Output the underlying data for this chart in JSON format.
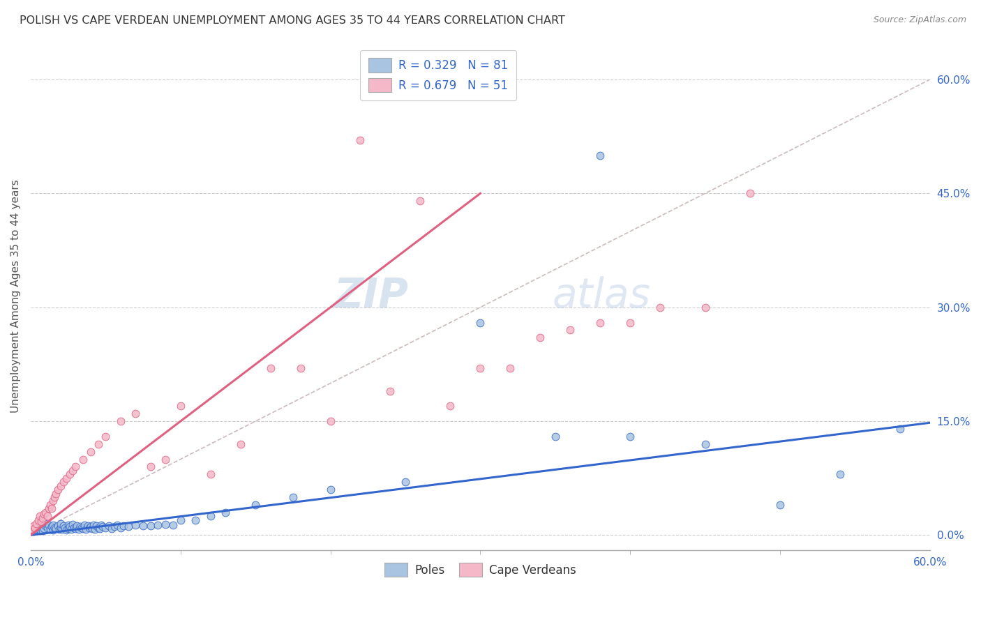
{
  "title": "POLISH VS CAPE VERDEAN UNEMPLOYMENT AMONG AGES 35 TO 44 YEARS CORRELATION CHART",
  "source": "Source: ZipAtlas.com",
  "ylabel": "Unemployment Among Ages 35 to 44 years",
  "xlim": [
    0.0,
    0.6
  ],
  "ylim": [
    -0.02,
    0.65
  ],
  "color_poles": "#a8c4e0",
  "color_cv": "#f4b8c8",
  "line_color_poles": "#3366cc",
  "line_color_cv": "#e06080",
  "watermark_zip": "ZIP",
  "watermark_atlas": "atlas",
  "poles_x": [
    0.002,
    0.003,
    0.004,
    0.005,
    0.006,
    0.007,
    0.008,
    0.009,
    0.01,
    0.01,
    0.011,
    0.012,
    0.013,
    0.014,
    0.015,
    0.015,
    0.016,
    0.017,
    0.018,
    0.019,
    0.02,
    0.02,
    0.021,
    0.022,
    0.023,
    0.024,
    0.025,
    0.025,
    0.026,
    0.027,
    0.028,
    0.029,
    0.03,
    0.031,
    0.032,
    0.033,
    0.034,
    0.035,
    0.036,
    0.037,
    0.038,
    0.039,
    0.04,
    0.041,
    0.042,
    0.043,
    0.044,
    0.045,
    0.046,
    0.047,
    0.048,
    0.05,
    0.052,
    0.054,
    0.056,
    0.058,
    0.06,
    0.062,
    0.065,
    0.07,
    0.075,
    0.08,
    0.085,
    0.09,
    0.095,
    0.1,
    0.11,
    0.12,
    0.13,
    0.15,
    0.175,
    0.2,
    0.25,
    0.3,
    0.35,
    0.38,
    0.4,
    0.45,
    0.5,
    0.54,
    0.58
  ],
  "poles_y": [
    0.005,
    0.008,
    0.01,
    0.012,
    0.008,
    0.01,
    0.006,
    0.009,
    0.012,
    0.015,
    0.01,
    0.013,
    0.008,
    0.011,
    0.007,
    0.013,
    0.01,
    0.009,
    0.012,
    0.008,
    0.01,
    0.015,
    0.008,
    0.012,
    0.01,
    0.007,
    0.013,
    0.009,
    0.011,
    0.008,
    0.014,
    0.01,
    0.009,
    0.012,
    0.008,
    0.011,
    0.01,
    0.009,
    0.013,
    0.008,
    0.012,
    0.01,
    0.011,
    0.009,
    0.013,
    0.008,
    0.012,
    0.01,
    0.009,
    0.013,
    0.011,
    0.01,
    0.012,
    0.009,
    0.011,
    0.013,
    0.01,
    0.012,
    0.011,
    0.013,
    0.012,
    0.012,
    0.013,
    0.014,
    0.013,
    0.02,
    0.02,
    0.025,
    0.03,
    0.04,
    0.05,
    0.06,
    0.07,
    0.28,
    0.13,
    0.5,
    0.13,
    0.12,
    0.04,
    0.08,
    0.14
  ],
  "cv_x": [
    0.001,
    0.002,
    0.003,
    0.004,
    0.005,
    0.006,
    0.007,
    0.008,
    0.009,
    0.01,
    0.011,
    0.012,
    0.013,
    0.014,
    0.015,
    0.016,
    0.017,
    0.018,
    0.02,
    0.022,
    0.024,
    0.026,
    0.028,
    0.03,
    0.035,
    0.04,
    0.045,
    0.05,
    0.06,
    0.07,
    0.08,
    0.09,
    0.1,
    0.12,
    0.14,
    0.16,
    0.18,
    0.2,
    0.22,
    0.24,
    0.26,
    0.28,
    0.3,
    0.32,
    0.34,
    0.36,
    0.38,
    0.4,
    0.42,
    0.45,
    0.48
  ],
  "cv_y": [
    0.008,
    0.012,
    0.01,
    0.015,
    0.02,
    0.025,
    0.018,
    0.022,
    0.028,
    0.03,
    0.025,
    0.035,
    0.04,
    0.035,
    0.045,
    0.05,
    0.055,
    0.06,
    0.065,
    0.07,
    0.075,
    0.08,
    0.085,
    0.09,
    0.1,
    0.11,
    0.12,
    0.13,
    0.15,
    0.16,
    0.09,
    0.1,
    0.17,
    0.08,
    0.12,
    0.22,
    0.22,
    0.15,
    0.52,
    0.19,
    0.44,
    0.17,
    0.22,
    0.22,
    0.26,
    0.27,
    0.28,
    0.28,
    0.3,
    0.3,
    0.45
  ]
}
